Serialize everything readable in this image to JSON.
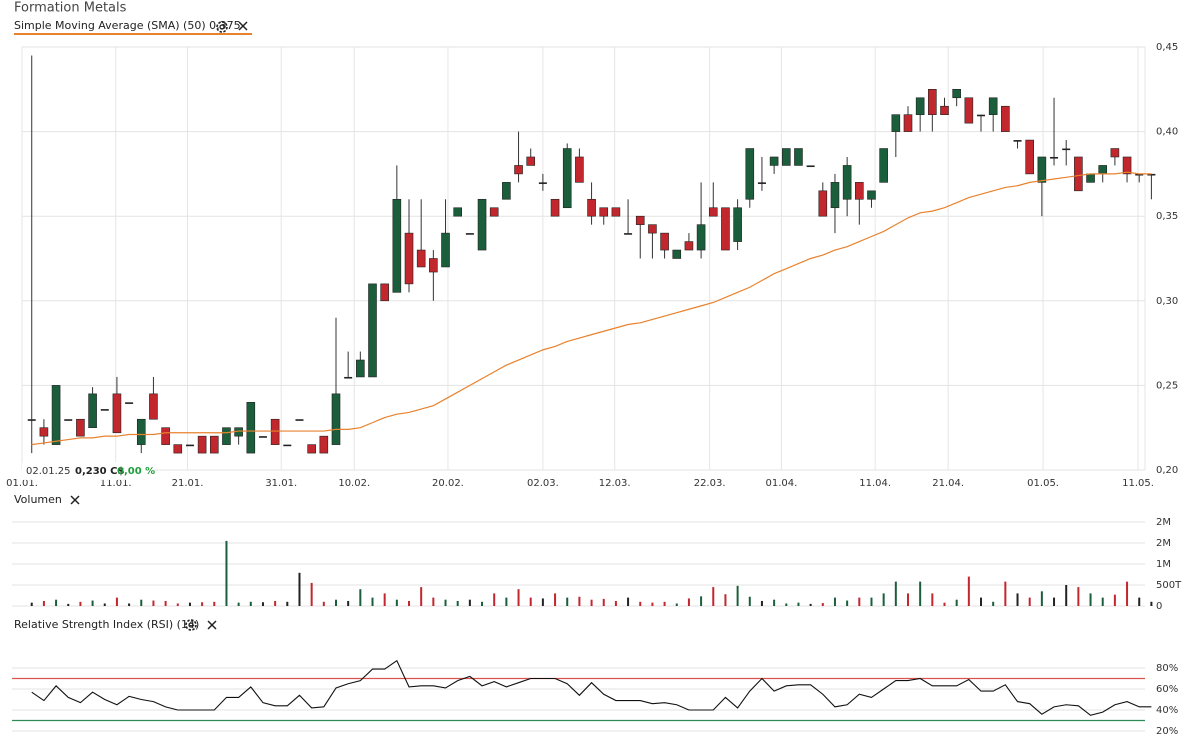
{
  "title": "Formation Metals",
  "tooltip": {
    "date": "02.01.25",
    "price": "0,230 C$",
    "change": "0,00 %"
  },
  "chart_data": [
    {
      "type": "candlestick",
      "open": [
        0.23,
        0.225,
        0.215,
        0.23,
        0.23,
        0.225,
        0.236,
        0.245,
        0.24,
        0.215,
        0.245,
        0.225,
        0.215,
        0.215,
        0.22,
        0.22,
        0.215,
        0.22,
        0.21,
        0.22,
        0.23,
        0.215,
        0.23,
        0.215,
        0.22,
        0.215,
        0.255,
        0.255,
        0.255,
        0.31,
        0.305,
        0.34,
        0.33,
        0.325,
        0.32,
        0.35,
        0.34,
        0.33,
        0.355,
        0.36,
        0.38,
        0.385,
        0.37,
        0.36,
        0.355,
        0.385,
        0.36,
        0.355,
        0.355,
        0.34,
        0.35,
        0.345,
        0.34,
        0.325,
        0.335,
        0.33,
        0.355,
        0.355,
        0.335,
        0.36,
        0.37,
        0.38,
        0.38,
        0.38,
        0.38,
        0.365,
        0.355,
        0.36,
        0.37,
        0.36,
        0.37,
        0.4,
        0.41,
        0.41,
        0.425,
        0.415,
        0.42,
        0.42,
        0.41,
        0.41,
        0.415,
        0.395,
        0.395,
        0.37,
        0.385,
        0.39,
        0.385,
        0.37,
        0.375,
        0.39,
        0.385,
        0.375,
        0.375
      ],
      "high": [
        0.445,
        0.23,
        0.25,
        0.23,
        0.23,
        0.249,
        0.236,
        0.255,
        0.24,
        0.23,
        0.255,
        0.225,
        0.215,
        0.215,
        0.22,
        0.22,
        0.225,
        0.225,
        0.24,
        0.22,
        0.23,
        0.215,
        0.23,
        0.215,
        0.22,
        0.29,
        0.27,
        0.27,
        0.31,
        0.31,
        0.38,
        0.36,
        0.36,
        0.33,
        0.36,
        0.355,
        0.34,
        0.36,
        0.355,
        0.37,
        0.4,
        0.39,
        0.375,
        0.36,
        0.393,
        0.39,
        0.37,
        0.355,
        0.355,
        0.36,
        0.35,
        0.345,
        0.34,
        0.33,
        0.34,
        0.37,
        0.37,
        0.355,
        0.36,
        0.39,
        0.385,
        0.385,
        0.39,
        0.39,
        0.38,
        0.37,
        0.375,
        0.385,
        0.37,
        0.365,
        0.39,
        0.41,
        0.415,
        0.42,
        0.425,
        0.42,
        0.425,
        0.42,
        0.41,
        0.42,
        0.415,
        0.395,
        0.395,
        0.385,
        0.42,
        0.395,
        0.385,
        0.375,
        0.38,
        0.39,
        0.385,
        0.375,
        0.375
      ],
      "low": [
        0.21,
        0.215,
        0.215,
        0.23,
        0.22,
        0.225,
        0.236,
        0.222,
        0.24,
        0.21,
        0.23,
        0.215,
        0.21,
        0.215,
        0.21,
        0.21,
        0.215,
        0.215,
        0.21,
        0.22,
        0.215,
        0.215,
        0.23,
        0.21,
        0.21,
        0.215,
        0.255,
        0.255,
        0.255,
        0.3,
        0.305,
        0.305,
        0.32,
        0.3,
        0.32,
        0.35,
        0.34,
        0.33,
        0.35,
        0.36,
        0.37,
        0.38,
        0.365,
        0.35,
        0.355,
        0.37,
        0.345,
        0.345,
        0.35,
        0.34,
        0.325,
        0.325,
        0.325,
        0.325,
        0.33,
        0.325,
        0.35,
        0.33,
        0.33,
        0.355,
        0.365,
        0.375,
        0.38,
        0.38,
        0.38,
        0.35,
        0.34,
        0.35,
        0.345,
        0.355,
        0.37,
        0.385,
        0.4,
        0.4,
        0.4,
        0.41,
        0.415,
        0.405,
        0.4,
        0.4,
        0.4,
        0.39,
        0.375,
        0.35,
        0.38,
        0.38,
        0.365,
        0.37,
        0.37,
        0.38,
        0.37,
        0.37,
        0.36
      ],
      "close": [
        0.23,
        0.22,
        0.25,
        0.23,
        0.22,
        0.245,
        0.236,
        0.222,
        0.24,
        0.23,
        0.23,
        0.215,
        0.21,
        0.215,
        0.21,
        0.21,
        0.225,
        0.225,
        0.24,
        0.22,
        0.215,
        0.215,
        0.23,
        0.21,
        0.21,
        0.245,
        0.255,
        0.265,
        0.31,
        0.3,
        0.36,
        0.31,
        0.32,
        0.317,
        0.34,
        0.355,
        0.34,
        0.36,
        0.35,
        0.37,
        0.375,
        0.38,
        0.37,
        0.35,
        0.39,
        0.37,
        0.35,
        0.35,
        0.35,
        0.34,
        0.345,
        0.34,
        0.33,
        0.33,
        0.33,
        0.345,
        0.35,
        0.33,
        0.355,
        0.39,
        0.37,
        0.385,
        0.39,
        0.39,
        0.38,
        0.35,
        0.37,
        0.38,
        0.36,
        0.365,
        0.39,
        0.41,
        0.4,
        0.42,
        0.41,
        0.41,
        0.425,
        0.405,
        0.41,
        0.42,
        0.4,
        0.395,
        0.375,
        0.385,
        0.385,
        0.39,
        0.365,
        0.375,
        0.38,
        0.385,
        0.375,
        0.375,
        0.375
      ],
      "colors": {
        "up": "#1b5e3b",
        "down": "#c1272d",
        "flat": "#222222"
      },
      "sma": {
        "name": "Simple Moving Average (SMA) (50) 0,375",
        "color": "#e8822e",
        "values": [
          0.215,
          0.216,
          0.217,
          0.218,
          0.219,
          0.219,
          0.22,
          0.22,
          0.221,
          0.221,
          0.221,
          0.222,
          0.222,
          0.222,
          0.222,
          0.222,
          0.222,
          0.223,
          0.223,
          0.223,
          0.223,
          0.223,
          0.223,
          0.223,
          0.223,
          0.224,
          0.224,
          0.225,
          0.228,
          0.231,
          0.233,
          0.234,
          0.236,
          0.238,
          0.242,
          0.246,
          0.25,
          0.254,
          0.258,
          0.262,
          0.265,
          0.268,
          0.271,
          0.273,
          0.276,
          0.278,
          0.28,
          0.282,
          0.284,
          0.286,
          0.287,
          0.289,
          0.291,
          0.293,
          0.295,
          0.297,
          0.299,
          0.302,
          0.305,
          0.308,
          0.312,
          0.316,
          0.319,
          0.322,
          0.325,
          0.327,
          0.33,
          0.332,
          0.335,
          0.338,
          0.341,
          0.345,
          0.349,
          0.352,
          0.353,
          0.355,
          0.358,
          0.361,
          0.363,
          0.365,
          0.367,
          0.368,
          0.37,
          0.371,
          0.372,
          0.373,
          0.374,
          0.375,
          0.375,
          0.375,
          0.376,
          0.375,
          0.375
        ]
      },
      "xlim": [
        -0.8,
        93.2
      ],
      "xticks": [
        {
          "value": -0.8,
          "label": "01.01."
        },
        {
          "value": 6.9,
          "label": "11.01."
        },
        {
          "value": 12.8,
          "label": "21.01."
        },
        {
          "value": 20.5,
          "label": "31.01."
        },
        {
          "value": 26.5,
          "label": "10.02."
        },
        {
          "value": 34.2,
          "label": "20.02."
        },
        {
          "value": 42.0,
          "label": "02.03."
        },
        {
          "value": 47.9,
          "label": "12.03."
        },
        {
          "value": 55.7,
          "label": "22.03."
        },
        {
          "value": 61.6,
          "label": "01.04."
        },
        {
          "value": 69.3,
          "label": "11.04."
        },
        {
          "value": 75.3,
          "label": "21.04."
        },
        {
          "value": 83.1,
          "label": "01.05."
        },
        {
          "value": 90.9,
          "label": "11.05."
        }
      ],
      "ylim": [
        0.2,
        0.45
      ],
      "yticks": [
        {
          "value": 0.2,
          "label": "0,20"
        },
        {
          "value": 0.25,
          "label": "0,25"
        },
        {
          "value": 0.3,
          "label": "0,30"
        },
        {
          "value": 0.35,
          "label": "0,35"
        },
        {
          "value": 0.4,
          "label": "0,40"
        },
        {
          "value": 0.45,
          "label": "0,45"
        }
      ],
      "grid": true
    },
    {
      "type": "bar",
      "name": "Volumen",
      "values": [
        80000,
        120000,
        150000,
        50000,
        100000,
        130000,
        60000,
        200000,
        60000,
        150000,
        130000,
        120000,
        60000,
        80000,
        90000,
        100000,
        1550000,
        80000,
        100000,
        90000,
        120000,
        100000,
        790000,
        550000,
        100000,
        150000,
        120000,
        400000,
        200000,
        300000,
        150000,
        120000,
        450000,
        200000,
        150000,
        120000,
        150000,
        100000,
        300000,
        200000,
        400000,
        200000,
        180000,
        300000,
        200000,
        220000,
        150000,
        170000,
        120000,
        200000,
        100000,
        80000,
        100000,
        60000,
        180000,
        230000,
        450000,
        280000,
        480000,
        220000,
        120000,
        150000,
        60000,
        80000,
        50000,
        70000,
        200000,
        130000,
        200000,
        200000,
        300000,
        580000,
        300000,
        580000,
        300000,
        80000,
        150000,
        700000,
        200000,
        100000,
        580000,
        300000,
        200000,
        350000,
        200000,
        500000,
        450000,
        300000,
        200000,
        270000,
        580000,
        200000,
        100000
      ],
      "ylim": [
        0,
        2000000
      ],
      "yticks": [
        0,
        {
          "value": 500000,
          "label": "500T"
        },
        {
          "value": 1000000,
          "label": "1M"
        },
        {
          "value": 1500000,
          "label": "2M"
        },
        {
          "value": 2000000,
          "label": "2M"
        }
      ],
      "grid": true
    },
    {
      "type": "line",
      "name": "Relative Strength Index (RSI) (14)",
      "color": "#111111",
      "values": [
        57,
        49,
        63,
        52,
        47,
        57,
        50,
        45,
        53,
        50,
        48,
        43,
        40,
        40,
        40,
        40,
        52,
        52,
        62,
        47,
        44,
        44,
        54,
        42,
        43,
        61,
        65,
        68,
        79,
        79,
        87,
        62,
        63,
        63,
        61,
        68,
        72,
        63,
        67,
        62,
        66,
        70,
        70,
        70,
        65,
        54,
        66,
        55,
        49,
        49,
        49,
        46,
        47,
        45,
        40,
        40,
        40,
        52,
        42,
        58,
        70,
        58,
        63,
        64,
        64,
        55,
        43,
        45,
        55,
        52,
        60,
        68,
        68,
        70,
        63,
        63,
        63,
        69,
        58,
        58,
        64,
        48,
        46,
        36,
        43,
        45,
        44,
        35,
        38,
        45,
        48,
        43,
        43
      ],
      "ylim": [
        20,
        100
      ],
      "yticks": [
        {
          "value": 20,
          "label": "20%"
        },
        {
          "value": 40,
          "label": "40%"
        },
        {
          "value": 60,
          "label": "60%"
        },
        {
          "value": 80,
          "label": "80%"
        }
      ],
      "levels": [
        {
          "value": 70,
          "color": "#d9534f"
        },
        {
          "value": 30,
          "color": "#2e8b57"
        }
      ],
      "grid": true
    }
  ]
}
